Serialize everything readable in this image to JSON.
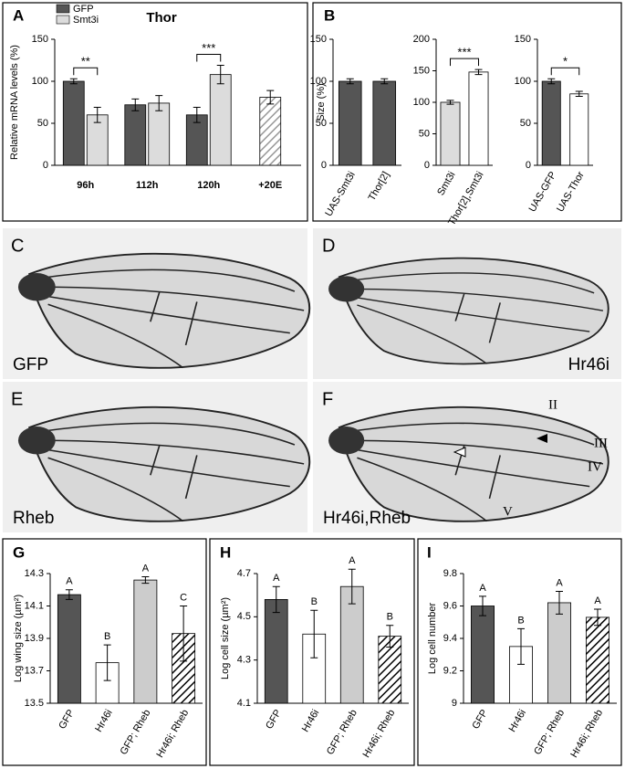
{
  "chart_data": [
    {
      "type": "bar",
      "panel": "A",
      "title": "Thor",
      "ylabel": "Relative mRNA levels (%)",
      "categories": [
        "96h",
        "112h",
        "120h",
        "+20E"
      ],
      "series": [
        {
          "name": "GFP",
          "color": "#555555",
          "values": [
            100,
            72,
            60,
            null
          ],
          "errors": [
            3,
            7,
            9,
            null
          ]
        },
        {
          "name": "Smt3i",
          "color": "#dcdcdc",
          "values": [
            60,
            74,
            108,
            null
          ],
          "errors": [
            9,
            9,
            11,
            null
          ]
        },
        {
          "color": "#999999",
          "pattern": "hatch",
          "values": [
            null,
            null,
            null,
            81
          ],
          "errors": [
            null,
            null,
            null,
            8
          ]
        }
      ],
      "significance": [
        "**",
        null,
        "***",
        null
      ],
      "ylim": [
        0,
        150
      ],
      "yticks": [
        0,
        50,
        100,
        150
      ]
    },
    {
      "type": "bar",
      "panel": "B",
      "ylabel": "Size (%)",
      "categories": [
        "UAS-Smt3i",
        "Thor[2]"
      ],
      "series": [
        {
          "colors": [
            "#555555",
            "#555555"
          ],
          "values": [
            100,
            100
          ],
          "errors": [
            3,
            3
          ]
        }
      ],
      "ylim": [
        0,
        150
      ],
      "yticks": [
        0,
        50,
        100,
        150
      ]
    },
    {
      "type": "bar",
      "categories": [
        "Smt3i",
        "Thor[2],Smt3i"
      ],
      "series": [
        {
          "colors": [
            "#dcdcdc",
            "#ffffff"
          ],
          "values": [
            100,
            148
          ],
          "errors": [
            3,
            4
          ]
        }
      ],
      "significance": "***",
      "ylim": [
        0,
        200
      ],
      "yticks": [
        0,
        50,
        100,
        150,
        200
      ]
    },
    {
      "type": "bar",
      "categories": [
        "UAS-GFP",
        "UAS-Thor"
      ],
      "series": [
        {
          "colors": [
            "#555555",
            "#ffffff"
          ],
          "values": [
            100,
            85
          ],
          "errors": [
            3,
            3
          ]
        }
      ],
      "significance": "*",
      "ylim": [
        0,
        150
      ],
      "yticks": [
        0,
        50,
        100,
        150
      ]
    },
    {
      "type": "bar",
      "panel": "G",
      "ylabel": "Log wing size (µm²)",
      "categories": [
        "GFP",
        "Hr46i",
        "GFP; Rheb",
        "Hr46i; Rheb"
      ],
      "series": [
        {
          "colors": [
            "#555555",
            "#ffffff",
            "#cccccc",
            "#000000"
          ],
          "patterns": [
            "solid",
            "solid",
            "solid",
            "hatch"
          ],
          "values": [
            14.17,
            13.75,
            14.26,
            13.93
          ],
          "errors": [
            0.03,
            0.11,
            0.02,
            0.17
          ]
        }
      ],
      "group_labels": [
        "A",
        "B",
        "A",
        "C"
      ],
      "ylim": [
        13.5,
        14.3
      ],
      "yticks": [
        13.5,
        13.7,
        13.9,
        14.1,
        14.3
      ]
    },
    {
      "type": "bar",
      "panel": "H",
      "ylabel": "Log cell size (µm²)",
      "categories": [
        "GFP",
        "Hr46i",
        "GFP; Rheb",
        "Hr46i; Rheb"
      ],
      "series": [
        {
          "colors": [
            "#555555",
            "#ffffff",
            "#cccccc",
            "#000000"
          ],
          "patterns": [
            "solid",
            "solid",
            "solid",
            "hatch"
          ],
          "values": [
            4.58,
            4.42,
            4.64,
            4.41
          ],
          "errors": [
            0.06,
            0.11,
            0.08,
            0.05
          ]
        }
      ],
      "group_labels": [
        "A",
        "B",
        "A",
        "B"
      ],
      "ylim": [
        4.1,
        4.7
      ],
      "yticks": [
        4.1,
        4.3,
        4.5,
        4.7
      ]
    },
    {
      "type": "bar",
      "panel": "I",
      "ylabel": "Log cell number",
      "categories": [
        "GFP",
        "Hr46i",
        "GFP; Rheb",
        "Hr46i; Rheb"
      ],
      "series": [
        {
          "colors": [
            "#555555",
            "#ffffff",
            "#cccccc",
            "#000000"
          ],
          "patterns": [
            "solid",
            "solid",
            "solid",
            "hatch"
          ],
          "values": [
            9.6,
            9.35,
            9.62,
            9.53
          ],
          "errors": [
            0.06,
            0.11,
            0.07,
            0.05
          ]
        }
      ],
      "group_labels": [
        "A",
        "B",
        "A",
        "A"
      ],
      "ylim": [
        9,
        9.8
      ],
      "yticks": [
        9,
        9.2,
        9.4,
        9.6,
        9.8
      ]
    }
  ],
  "image_panels": [
    {
      "letter": "C",
      "label": "GFP"
    },
    {
      "letter": "D",
      "label": "Hr46i"
    },
    {
      "letter": "E",
      "label": "Rheb"
    },
    {
      "letter": "F",
      "label": "Hr46i,Rheb",
      "vein_labels": [
        "II",
        "III",
        "IV",
        "V"
      ]
    }
  ]
}
